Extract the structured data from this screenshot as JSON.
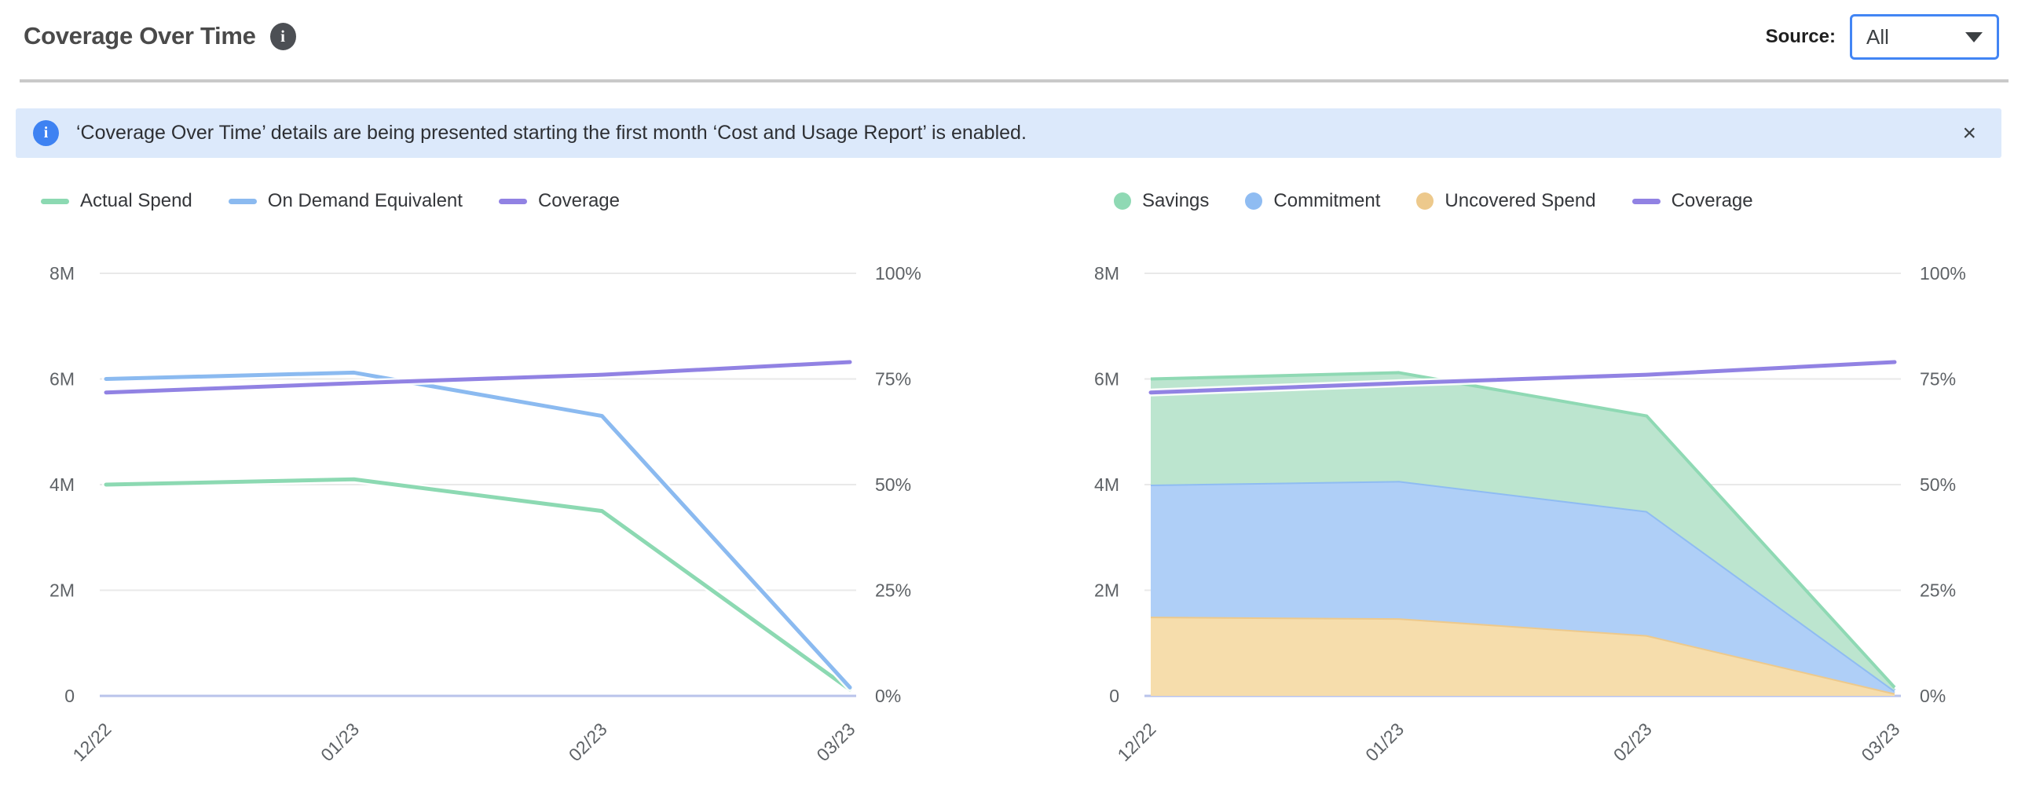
{
  "header": {
    "title": "Coverage Over Time",
    "source_label": "Source:",
    "source_value": "All"
  },
  "banner": {
    "info_symbol": "i",
    "text": "‘Coverage Over Time’ details are being presented starting the first month ‘Cost and Usage Report’ is enabled.",
    "close_symbol": "×"
  },
  "colors": {
    "accent": "#4285F4",
    "banner_bg": "#DCE9FB",
    "banner_icon": "#3E82F2",
    "divider": "#C9C9C9",
    "grid_line": "#E9E9E9",
    "axis_baseline": "#B9C3EB",
    "axis_text": "#5E6266"
  },
  "chart_data": [
    {
      "type": "line",
      "title": "Coverage Over Time - spend lines",
      "categories": [
        "12/22",
        "01/23",
        "02/23",
        "03/23"
      ],
      "y_left": {
        "tick_labels": [
          "8M",
          "6M",
          "4M",
          "2M",
          "0"
        ],
        "max": 8,
        "unit": "M"
      },
      "y_right": {
        "tick_labels": [
          "100%",
          "75%",
          "50%",
          "25%",
          "0%"
        ],
        "max": 100,
        "unit": "%"
      },
      "grid": true,
      "legend_position": "top-left",
      "series": [
        {
          "name": "Actual Spend",
          "kind": "line",
          "axis": "left",
          "color": "#8CD9B2",
          "values": [
            4.0,
            4.1,
            3.5,
            0.12
          ]
        },
        {
          "name": "On Demand Equivalent",
          "kind": "line",
          "axis": "left",
          "color": "#8BBAF0",
          "values": [
            6.0,
            6.12,
            5.3,
            0.16
          ]
        },
        {
          "name": "Coverage",
          "kind": "line",
          "axis": "right",
          "color": "#9182E3",
          "values": [
            71.8,
            74,
            76,
            79
          ]
        }
      ]
    },
    {
      "type": "area",
      "stacked": true,
      "title": "Coverage Over Time - stacked spend breakdown",
      "categories": [
        "12/22",
        "01/23",
        "02/23",
        "03/23"
      ],
      "y_left": {
        "tick_labels": [
          "8M",
          "6M",
          "4M",
          "2M",
          "0"
        ],
        "max": 8,
        "unit": "M"
      },
      "y_right": {
        "tick_labels": [
          "100%",
          "75%",
          "50%",
          "25%",
          "0%"
        ],
        "max": 100,
        "unit": "%"
      },
      "grid": true,
      "legend_position": "top-left",
      "series": [
        {
          "name": "Savings",
          "kind": "area",
          "stack_index": 2,
          "color": "#8FD9B4",
          "fill": "#BCE5CF",
          "values": [
            2.0,
            2.05,
            1.8,
            0.06
          ]
        },
        {
          "name": "Commitment",
          "kind": "area",
          "stack_index": 1,
          "color": "#8FBCF2",
          "fill": "#AFCFF7",
          "values": [
            2.5,
            2.6,
            2.35,
            0.05
          ]
        },
        {
          "name": "Uncovered Spend",
          "kind": "area",
          "stack_index": 0,
          "color": "#EDC98C",
          "fill": "#F6DDAC",
          "values": [
            1.5,
            1.47,
            1.15,
            0.05
          ]
        },
        {
          "name": "Coverage",
          "kind": "line",
          "axis": "right",
          "color": "#9182E3",
          "values": [
            71.8,
            74,
            76,
            79
          ]
        }
      ]
    }
  ]
}
